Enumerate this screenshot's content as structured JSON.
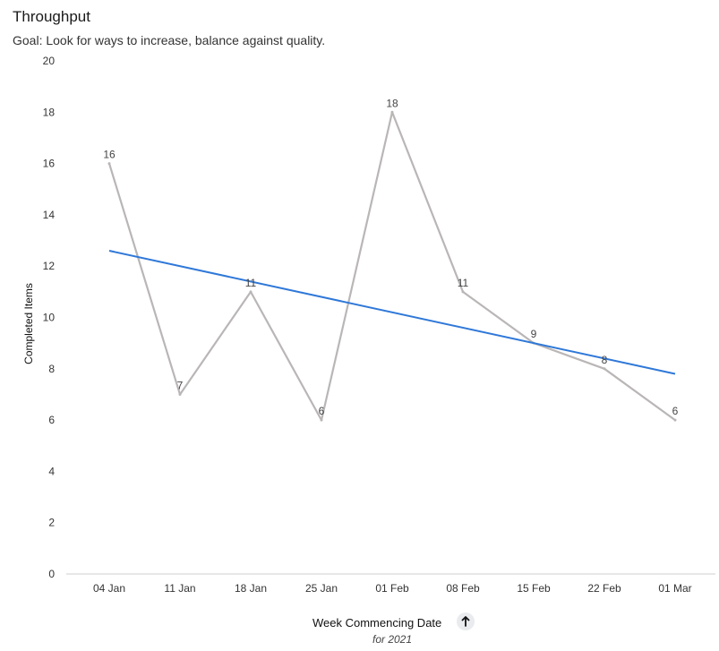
{
  "header": {
    "title": "Throughput",
    "subtitle": "Goal: Look for ways to increase, balance against quality."
  },
  "colors": {
    "series_line": "#bab6b6",
    "trend_line": "#2f78d8",
    "axis": "#cfcfcf",
    "sort_button_bg": "#e9ebee"
  },
  "x_axis": {
    "title": "Week Commencing Date",
    "subtitle": "for 2021",
    "sort_icon": "arrow-up-icon"
  },
  "chart_data": {
    "type": "line",
    "title": "Throughput",
    "subtitle": "Goal: Look for ways to increase, balance against quality.",
    "xlabel": "Week Commencing Date",
    "ylabel": "Completed Items",
    "categories": [
      "04 Jan",
      "11 Jan",
      "18 Jan",
      "25 Jan",
      "01 Feb",
      "08 Feb",
      "15 Feb",
      "22 Feb",
      "01 Mar"
    ],
    "series": [
      {
        "values": [
          16,
          7,
          11,
          6,
          18,
          11,
          9,
          8,
          6
        ],
        "data_labels": [
          "16",
          "7",
          "11",
          "6",
          "18",
          "11",
          "9",
          "8",
          "6"
        ]
      }
    ],
    "trend_line": {
      "start": 12.6,
      "end": 7.8
    },
    "ylim": [
      0,
      20
    ],
    "yticks": [
      0,
      2,
      4,
      6,
      8,
      10,
      12,
      14,
      16,
      18,
      20
    ],
    "grid": false,
    "legend": "none"
  }
}
